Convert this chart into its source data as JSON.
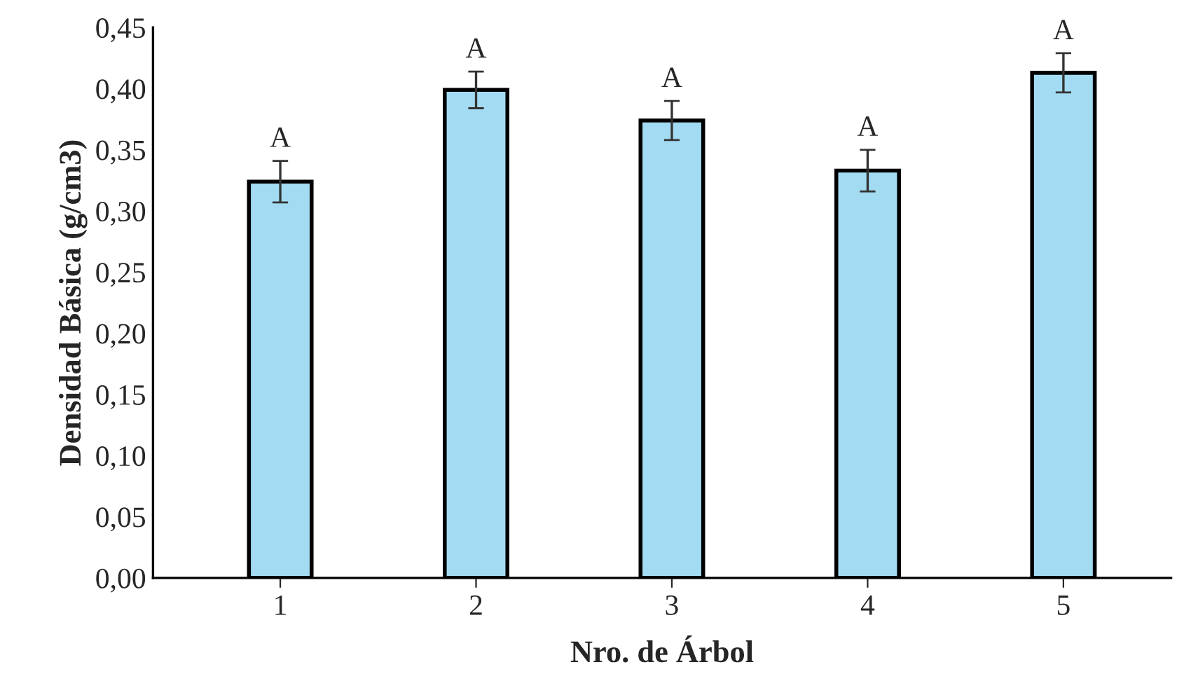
{
  "chart_data": {
    "type": "bar",
    "xlabel": "Nro. de Árbol",
    "ylabel": "Densidad Básica (g/cm3)",
    "categories": [
      "1",
      "2",
      "3",
      "4",
      "5"
    ],
    "values": [
      0.324,
      0.399,
      0.374,
      0.333,
      0.413
    ],
    "errors": [
      0.017,
      0.015,
      0.016,
      0.017,
      0.016
    ],
    "color": "#a3dcf2",
    "ylim": [
      0,
      0.45
    ],
    "yticks": [
      {
        "value": 0,
        "label": "0,00"
      },
      {
        "value": 0.05,
        "label": "0,05"
      },
      {
        "value": 0.1,
        "label": "0,10"
      },
      {
        "value": 0.15,
        "label": "0,15"
      },
      {
        "value": 0.2,
        "label": "0,20"
      },
      {
        "value": 0.25,
        "label": "0,25"
      },
      {
        "value": 0.3,
        "label": "0,30"
      },
      {
        "value": 0.35,
        "label": "0,35"
      },
      {
        "value": 0.4,
        "label": "0,40"
      },
      {
        "value": 0.45,
        "label": "0,45"
      }
    ],
    "annotations": [
      {
        "text": "A",
        "x": "1",
        "y": 0.341
      },
      {
        "text": "A",
        "x": "2",
        "y": 0.414
      },
      {
        "text": "A",
        "x": "3",
        "y": 0.39
      },
      {
        "text": "A",
        "x": "4",
        "y": 0.35
      },
      {
        "text": "A",
        "x": "5",
        "y": 0.429
      }
    ],
    "grid": false,
    "legend": false
  }
}
